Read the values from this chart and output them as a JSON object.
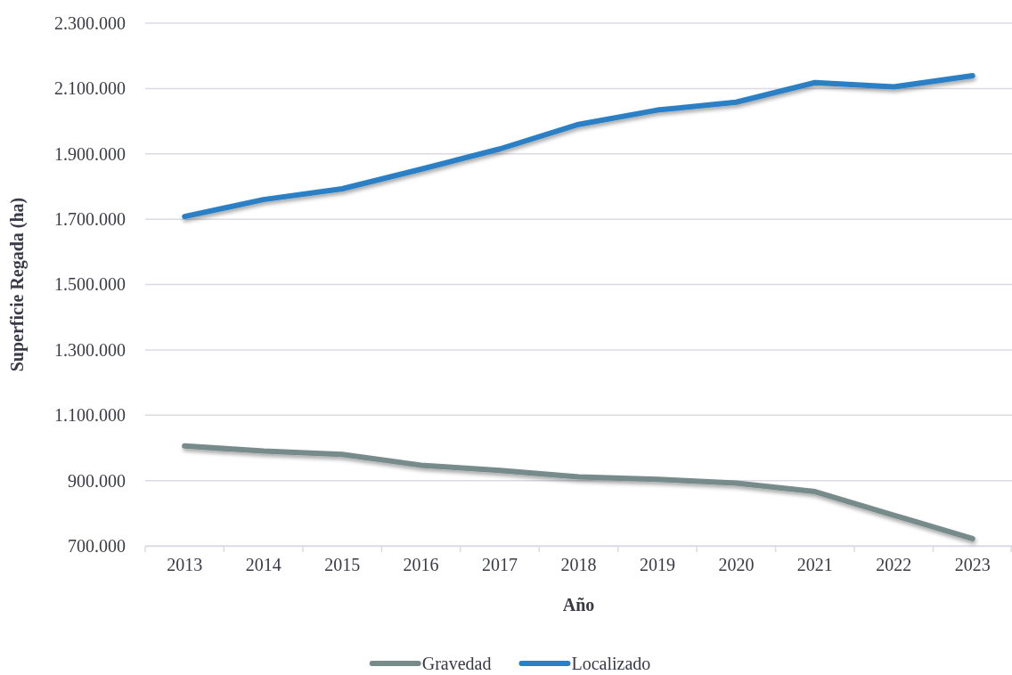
{
  "chart_data": {
    "type": "line",
    "xlabel": "Año",
    "ylabel": "Superficie Regada (ha)",
    "categories": [
      "2013",
      "2014",
      "2015",
      "2016",
      "2017",
      "2018",
      "2019",
      "2020",
      "2021",
      "2022",
      "2023"
    ],
    "series": [
      {
        "name": "Gravedad",
        "color": "#778b8b",
        "values": [
          1006000,
          990000,
          980000,
          947000,
          931000,
          911000,
          904000,
          892000,
          866000,
          794000,
          722000
        ]
      },
      {
        "name": "Localizado",
        "color": "#2a7fc5",
        "values": [
          1708000,
          1760000,
          1793000,
          1853000,
          1915000,
          1990000,
          2034000,
          2058000,
          2118000,
          2105000,
          2139000
        ]
      }
    ],
    "ylim": [
      700000,
      2300000
    ],
    "yticks": [
      {
        "value": 700000,
        "label": "700.000"
      },
      {
        "value": 900000,
        "label": "900.000"
      },
      {
        "value": 1100000,
        "label": "1.100.000"
      },
      {
        "value": 1300000,
        "label": "1.300.000"
      },
      {
        "value": 1500000,
        "label": "1.500.000"
      },
      {
        "value": 1700000,
        "label": "1.700.000"
      },
      {
        "value": 1900000,
        "label": "1.900.000"
      },
      {
        "value": 2100000,
        "label": "2.100.000"
      },
      {
        "value": 2300000,
        "label": "2.300.000"
      }
    ],
    "grid": "y",
    "legend": "bottom"
  }
}
